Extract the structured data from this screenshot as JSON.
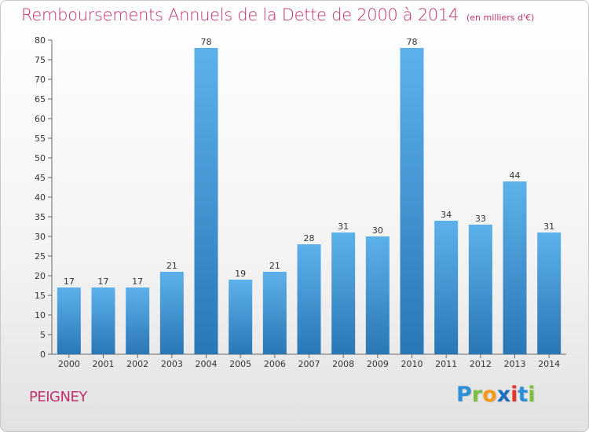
{
  "header": {
    "title": "Remboursements Annuels de la Dette de 2000 à 2014",
    "unit": "(en milliers d'€)"
  },
  "footer": {
    "commune": "PEIGNEY",
    "logo_text": "Proxiti",
    "logo_letters": [
      "P",
      "r",
      "o",
      "x",
      "i",
      "t",
      "i"
    ],
    "logo_colors": [
      "#2d8fd5",
      "#7bbf3f",
      "#f39a1e",
      "#1f6fbf",
      "#e8352b",
      "#2d8fd5",
      "#7bbf3f"
    ]
  },
  "colors": {
    "accent": "#c0326f",
    "bar_top": "#5db1ea",
    "bar_bottom": "#2a77b6"
  },
  "chart_data": {
    "type": "bar",
    "title": "Remboursements Annuels de la Dette de 2000 à 2014",
    "subtitle": "(en milliers d'€)",
    "categories": [
      "2000",
      "2001",
      "2002",
      "2003",
      "2004",
      "2005",
      "2006",
      "2007",
      "2008",
      "2009",
      "2010",
      "2011",
      "2012",
      "2013",
      "2014"
    ],
    "values": [
      17,
      17,
      17,
      21,
      78,
      19,
      21,
      28,
      31,
      30,
      78,
      34,
      33,
      44,
      31
    ],
    "ylim": [
      0,
      80
    ],
    "yticks": [
      0,
      5,
      10,
      15,
      20,
      25,
      30,
      35,
      40,
      45,
      50,
      55,
      60,
      65,
      70,
      75,
      80
    ],
    "grid": false,
    "data_labels": true
  }
}
